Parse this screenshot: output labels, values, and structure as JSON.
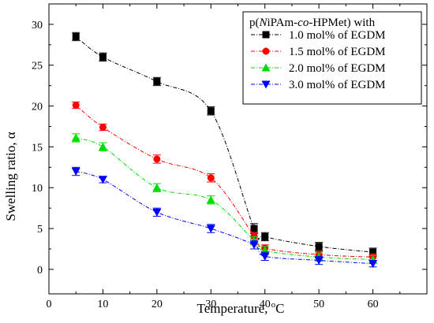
{
  "chart_data": {
    "type": "scatter",
    "xlabel": "Temperature, ",
    "xlabel_unit": "C",
    "xlabel_degree": "o",
    "ylabel": "Swelling ratio, α",
    "xlim": [
      0,
      70
    ],
    "ylim": [
      -3,
      32.5
    ],
    "xticks": [
      0,
      10,
      20,
      30,
      40,
      50,
      60
    ],
    "yticks": [
      0,
      5,
      10,
      15,
      20,
      25,
      30
    ],
    "grid": false,
    "legend_placement": "top-right",
    "legend_title": {
      "prefix": "p(",
      "italic": "N",
      "mid": "iPAm-",
      "italic2": "co",
      "suffix": "-HPMet) with"
    },
    "x": [
      5,
      10,
      20,
      30,
      38,
      40,
      50,
      60
    ],
    "series": [
      {
        "name": "1.0 mol% of EGDM",
        "color": "#000000",
        "marker": "square",
        "values": [
          28.5,
          26.0,
          23.0,
          19.4,
          5.0,
          4.0,
          2.8,
          2.1
        ],
        "errors": [
          0.5,
          0.5,
          0.5,
          0.5,
          0.6,
          0.5,
          0.5,
          0.5
        ]
      },
      {
        "name": "1.5 mol% of EGDM",
        "color": "#ff0000",
        "marker": "circle",
        "values": [
          20.1,
          17.4,
          13.5,
          11.2,
          4.1,
          2.6,
          1.8,
          1.5
        ],
        "errors": [
          0.4,
          0.4,
          0.5,
          0.5,
          0.4,
          0.4,
          0.4,
          0.4
        ]
      },
      {
        "name": "2.0 mol% of EGDM",
        "color": "#00dd00",
        "marker": "triangle-up",
        "values": [
          16.1,
          15.0,
          10.0,
          8.5,
          3.5,
          2.3,
          1.5,
          1.2
        ],
        "errors": [
          0.5,
          0.5,
          0.5,
          0.5,
          0.5,
          0.5,
          0.5,
          0.5
        ]
      },
      {
        "name": "3.0 mol% of EGDM",
        "color": "#0000ff",
        "marker": "triangle-down",
        "values": [
          12.0,
          11.0,
          7.0,
          5.0,
          3.0,
          1.6,
          1.1,
          0.7
        ],
        "errors": [
          0.5,
          0.4,
          0.5,
          0.5,
          0.5,
          0.5,
          0.5,
          0.4
        ]
      }
    ]
  }
}
